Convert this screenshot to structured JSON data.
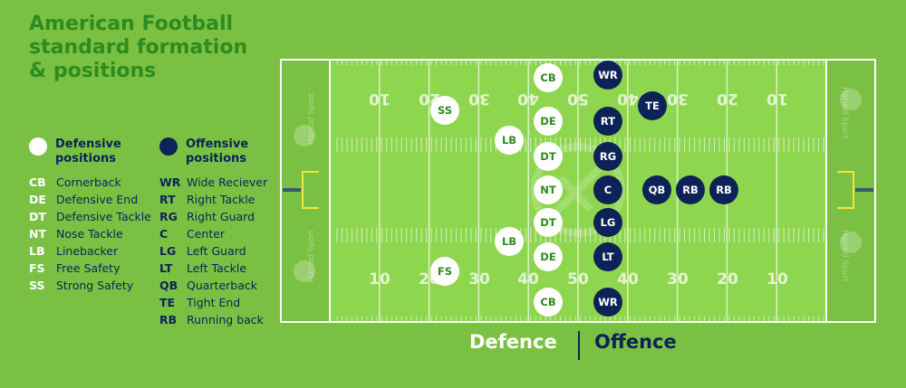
{
  "title": "American Football standard formation & positions",
  "legend": {
    "defensive": {
      "heading": "Defensive positions",
      "color": "#ffffff",
      "items": [
        {
          "abbr": "CB",
          "name": "Cornerback"
        },
        {
          "abbr": "DE",
          "name": "Defensive End"
        },
        {
          "abbr": "DT",
          "name": "Defensive Tackle"
        },
        {
          "abbr": "NT",
          "name": "Nose Tackle"
        },
        {
          "abbr": "LB",
          "name": "Linebacker"
        },
        {
          "abbr": "FS",
          "name": "Free Safety"
        },
        {
          "abbr": "SS",
          "name": "Strong Safety"
        }
      ]
    },
    "offensive": {
      "heading": "Offensive positions",
      "color": "#0d2257",
      "items": [
        {
          "abbr": "WR",
          "name": "Wide Reciever"
        },
        {
          "abbr": "RT",
          "name": "Right Tackle"
        },
        {
          "abbr": "RG",
          "name": "Right Guard"
        },
        {
          "abbr": "C",
          "name": "Center"
        },
        {
          "abbr": "LG",
          "name": "Left Guard"
        },
        {
          "abbr": "LT",
          "name": "Left Tackle"
        },
        {
          "abbr": "QB",
          "name": "Quarterback"
        },
        {
          "abbr": "TE",
          "name": "Tight End"
        },
        {
          "abbr": "RB",
          "name": "Running back"
        }
      ]
    }
  },
  "field": {
    "yard_numbers_top": [
      "10",
      "20",
      "30",
      "40",
      "50",
      "40",
      "30",
      "20",
      "10"
    ],
    "yard_numbers_bottom": [
      "10",
      "20",
      "30",
      "40",
      "50",
      "40",
      "30",
      "20",
      "10"
    ],
    "endzone_logo_text": "Harrod Sport",
    "colors": {
      "field": "#8fd64f",
      "endzone": "#7ac143",
      "lines": "#ffffff",
      "goalposts": "#f2e63a"
    }
  },
  "players": {
    "defense": [
      "CB",
      "SS",
      "DE",
      "LB",
      "DT",
      "NT",
      "DT",
      "LB",
      "DE",
      "FS",
      "CB"
    ],
    "offense": [
      "WR",
      "TE",
      "RT",
      "RG",
      "C",
      "QB",
      "RB",
      "RB",
      "LG",
      "LT",
      "WR"
    ]
  },
  "captions": {
    "defence": "Defence",
    "offence": "Offence"
  }
}
